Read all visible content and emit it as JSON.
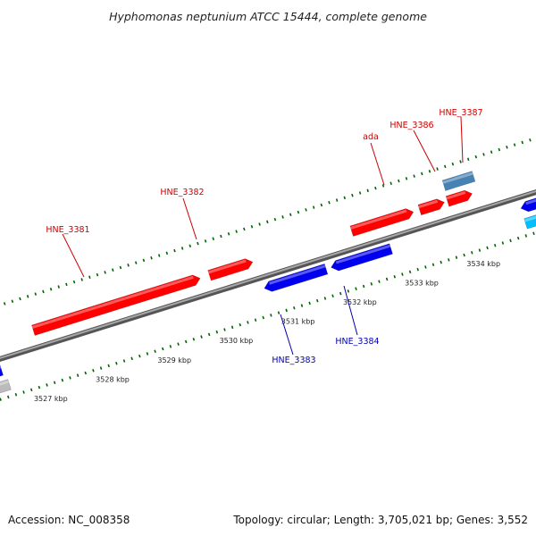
{
  "title": "Hyphomonas neptunium ATCC 15444, complete genome",
  "footer": {
    "accession": "Accession: NC_008358",
    "summary": "Topology: circular; Length: 3,705,021 bp; Genes: 3,552"
  },
  "colors": {
    "forward_gene": "#ff0000",
    "reverse_gene": "#0000ee",
    "steel_gene": "#4682b4",
    "cyan_gene": "#00bfff",
    "gray_gene": "#bbbbbb",
    "backbone": "#808080",
    "ticks": "#006400",
    "forward_label": "#cc0000",
    "reverse_label": "#0000aa"
  },
  "scale": {
    "kbp_labels": [
      "3527 kbp",
      "3528 kbp",
      "3529 kbp",
      "3530 kbp",
      "3531 kbp",
      "3532 kbp",
      "3533 kbp",
      "3534 kbp"
    ]
  },
  "genes": {
    "forward": [
      {
        "label": "HNE_3381",
        "start_kbp": 3527.0,
        "end_kbp": 3529.7
      },
      {
        "label": "HNE_3382",
        "start_kbp": 3529.85,
        "end_kbp": 3530.55
      },
      {
        "label": "ada",
        "start_kbp": 3532.15,
        "end_kbp": 3533.15
      },
      {
        "label": "HNE_3386",
        "start_kbp": 3533.25,
        "end_kbp": 3533.65
      },
      {
        "label": "HNE_3387",
        "start_kbp": 3533.7,
        "end_kbp": 3534.1
      }
    ],
    "reverse": [
      {
        "label": "HNE_3383",
        "start_kbp": 3530.6,
        "end_kbp": 3531.6
      },
      {
        "label": "HNE_3384",
        "start_kbp": 3531.68,
        "end_kbp": 3532.65
      }
    ]
  }
}
